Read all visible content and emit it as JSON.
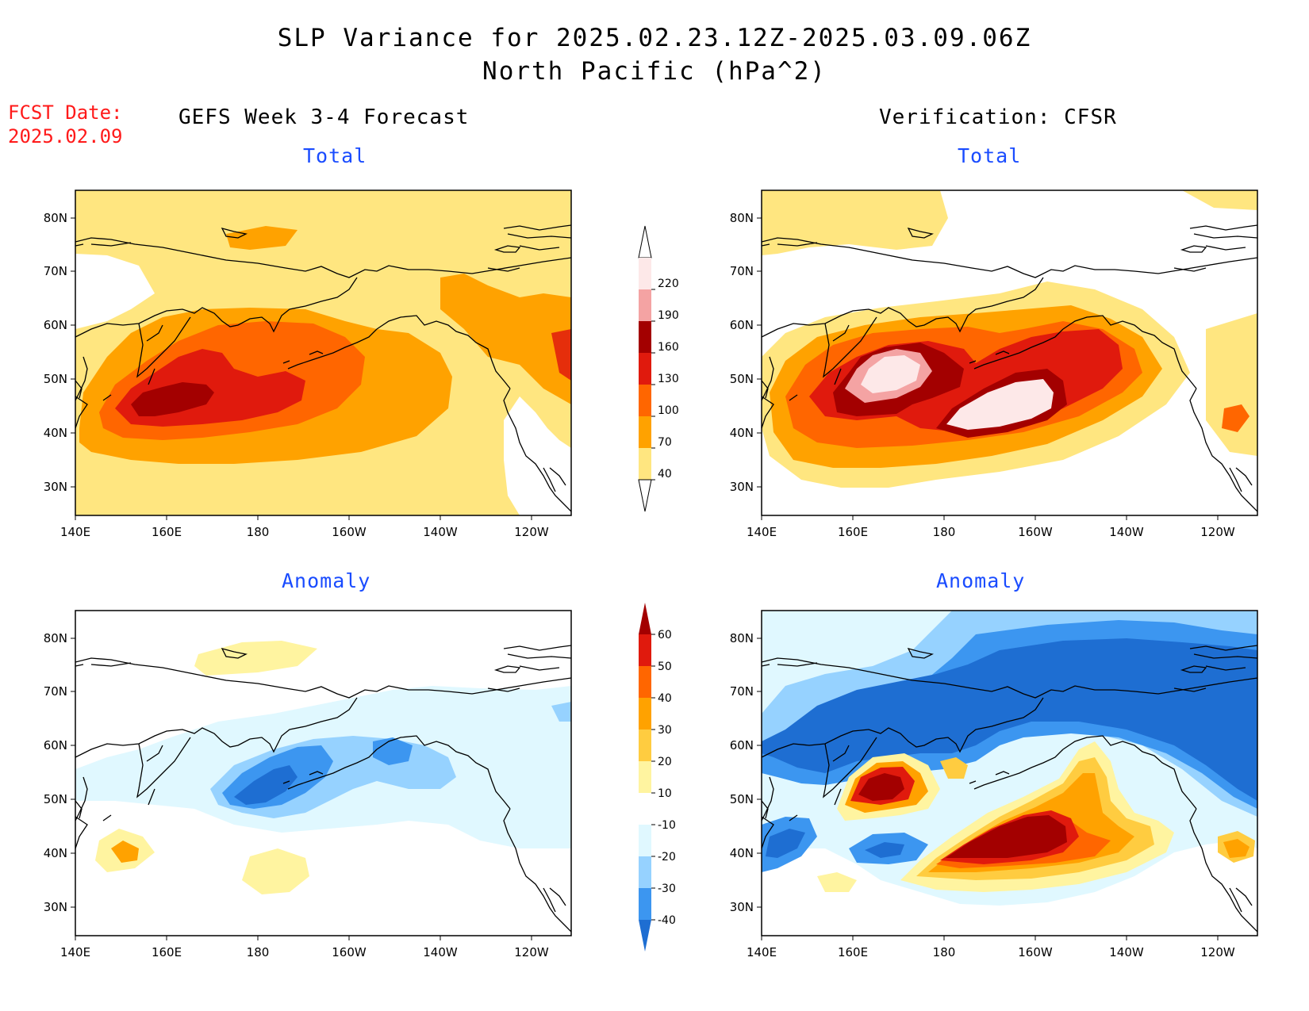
{
  "title": {
    "line1": "SLP Variance for 2025.02.23.12Z-2025.03.09.06Z",
    "line2": "North Pacific (hPa^2)"
  },
  "fcst": {
    "label": "FCST Date:",
    "date": "2025.02.09"
  },
  "columns": {
    "left": "GEFS Week 3-4 Forecast",
    "right": "Verification: CFSR"
  },
  "panels": {
    "top_left": "Total",
    "top_right": "Total",
    "bottom_left": "Anomaly",
    "bottom_right": "Anomaly"
  },
  "axes": {
    "lon_ticks": [
      "140E",
      "160E",
      "180",
      "160W",
      "140W",
      "120W"
    ],
    "lat_ticks": [
      "80N",
      "70N",
      "60N",
      "50N",
      "40N",
      "30N"
    ]
  },
  "colorbars": {
    "total": {
      "labels": [
        "220",
        "190",
        "160",
        "130",
        "100",
        "70",
        "40"
      ],
      "colors": [
        "#fde8e8",
        "#f4a3a3",
        "#a30000",
        "#e01a0d",
        "#ff6600",
        "#ffa200",
        "#ffe680"
      ]
    },
    "anomaly": {
      "labels": [
        "60",
        "50",
        "40",
        "30",
        "20",
        "10",
        "-10",
        "-20",
        "-30",
        "-40"
      ],
      "colors": [
        "#a30000",
        "#e01a0d",
        "#ff6600",
        "#ffa200",
        "#ffcc40",
        "#fff4a0",
        "#ffffff",
        "#e0f8ff",
        "#96d2ff",
        "#3c96f0",
        "#1e6ed2"
      ]
    }
  },
  "colors": {
    "fcst_text": "#ff1a1a",
    "subtitle_text": "#1a4cff",
    "coast": "#000000"
  }
}
